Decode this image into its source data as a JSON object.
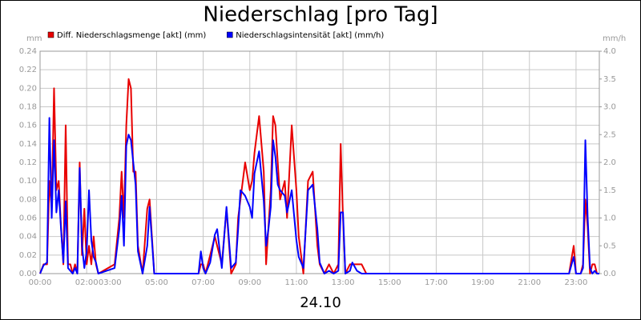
{
  "chart_data": {
    "type": "line",
    "title": "Niederschlag [pro Tag]",
    "xlabel": "24.10",
    "ylabel": "mm",
    "y2label": "mm/h",
    "legend": "top",
    "grid": true,
    "xlim": [
      0,
      24
    ],
    "xticks": [
      {
        "value": 0,
        "label": "00:00"
      },
      {
        "value": 2,
        "label": "02:00"
      },
      {
        "value": 3,
        "label": "03:00"
      },
      {
        "value": 5,
        "label": "05:00"
      },
      {
        "value": 7,
        "label": "07:00"
      },
      {
        "value": 9,
        "label": "09:00"
      },
      {
        "value": 11,
        "label": "11:00"
      },
      {
        "value": 13,
        "label": "13:00"
      },
      {
        "value": 15,
        "label": "15:00"
      },
      {
        "value": 17,
        "label": "17:00"
      },
      {
        "value": 19,
        "label": "19:00"
      },
      {
        "value": 21,
        "label": "21:00"
      },
      {
        "value": 23,
        "label": "23:00"
      }
    ],
    "ylim": [
      0,
      0.24
    ],
    "yticks": [
      {
        "value": 0,
        "label": "0.00"
      },
      {
        "value": 0.02,
        "label": "0.02"
      },
      {
        "value": 0.04,
        "label": "0.04"
      },
      {
        "value": 0.06,
        "label": "0.06"
      },
      {
        "value": 0.08,
        "label": "0.08"
      },
      {
        "value": 0.1,
        "label": "0.10"
      },
      {
        "value": 0.12,
        "label": "0.12"
      },
      {
        "value": 0.14,
        "label": "0.14"
      },
      {
        "value": 0.16,
        "label": "0.16"
      },
      {
        "value": 0.18,
        "label": "0.18"
      },
      {
        "value": 0.2,
        "label": "0.20"
      },
      {
        "value": 0.22,
        "label": "0.22"
      },
      {
        "value": 0.24,
        "label": "0.24"
      }
    ],
    "y2lim": [
      0,
      4
    ],
    "y2ticks": [
      {
        "value": 0,
        "label": "0.0"
      },
      {
        "value": 0.5,
        "label": "0.5"
      },
      {
        "value": 1,
        "label": "1.0"
      },
      {
        "value": 1.5,
        "label": "1.5"
      },
      {
        "value": 2,
        "label": "2.0"
      },
      {
        "value": 2.5,
        "label": "2.5"
      },
      {
        "value": 3,
        "label": "3.0"
      },
      {
        "value": 3.5,
        "label": "3.5"
      },
      {
        "value": 4,
        "label": "4.0"
      }
    ],
    "x": [
      0,
      0.15,
      0.3,
      0.4,
      0.5,
      0.6,
      0.7,
      0.8,
      0.9,
      1.0,
      1.1,
      1.2,
      1.3,
      1.4,
      1.5,
      1.6,
      1.7,
      1.8,
      1.9,
      2.0,
      2.1,
      2.2,
      2.3,
      2.4,
      2.5,
      3.2,
      3.4,
      3.5,
      3.6,
      3.7,
      3.8,
      3.9,
      4.0,
      4.1,
      4.2,
      4.4,
      4.6,
      4.7,
      4.9,
      6.8,
      6.9,
      7.0,
      7.1,
      7.3,
      7.5,
      7.6,
      7.8,
      8.0,
      8.2,
      8.4,
      8.5,
      8.6,
      8.8,
      9.0,
      9.1,
      9.2,
      9.4,
      9.6,
      9.7,
      9.8,
      9.9,
      10.0,
      10.1,
      10.2,
      10.3,
      10.5,
      10.6,
      10.8,
      11.0,
      11.1,
      11.3,
      11.5,
      11.7,
      11.9,
      12.0,
      12.2,
      12.4,
      12.6,
      12.8,
      12.9,
      13.0,
      13.1,
      13.3,
      13.4,
      13.6,
      13.8,
      14.0,
      22.7,
      22.9,
      23.0,
      23.2,
      23.3,
      23.4,
      23.5,
      23.6,
      23.7,
      23.8,
      23.9,
      24
    ],
    "series": [
      {
        "name": "Diff. Niederschlagsmenge [akt] (mm)",
        "color": "#e80000",
        "values": [
          0,
          0.01,
          0.01,
          0.1,
          0.07,
          0.2,
          0.09,
          0.1,
          0.05,
          0.01,
          0.16,
          0.01,
          0.01,
          0,
          0.01,
          0,
          0.12,
          0.02,
          0.07,
          0.01,
          0.03,
          0.01,
          0.04,
          0.01,
          0,
          0.01,
          0.06,
          0.11,
          0.06,
          0.16,
          0.21,
          0.2,
          0.11,
          0.11,
          0.03,
          0,
          0.07,
          0.08,
          0,
          0,
          0.01,
          0.01,
          0,
          0.02,
          0.04,
          0.03,
          0.01,
          0.07,
          0,
          0.01,
          0.06,
          0.08,
          0.12,
          0.09,
          0.1,
          0.13,
          0.17,
          0.11,
          0.01,
          0.05,
          0.09,
          0.17,
          0.16,
          0.12,
          0.08,
          0.1,
          0.06,
          0.16,
          0.09,
          0.04,
          0,
          0.1,
          0.11,
          0.03,
          0.01,
          0,
          0.01,
          0,
          0.01,
          0.14,
          0.06,
          0,
          0.01,
          0.01,
          0.01,
          0.01,
          0,
          0,
          0.03,
          0,
          0,
          0.01,
          0.08,
          0.05,
          0,
          0.01,
          0.01,
          0,
          0
        ]
      },
      {
        "name": "Niederschlagsintensität [akt] (mm/h)",
        "color": "#0000ff",
        "axis": "y2",
        "values": [
          0,
          0.15,
          0.2,
          2.8,
          1.0,
          2.4,
          1.1,
          1.5,
          0.8,
          0.2,
          1.3,
          0.1,
          0.05,
          0,
          0.1,
          0,
          1.9,
          0.5,
          0.1,
          0.4,
          1.5,
          0.6,
          0.3,
          0.2,
          0,
          0.1,
          0.8,
          1.4,
          0.5,
          2.3,
          2.5,
          2.4,
          2.0,
          1.6,
          0.4,
          0,
          0.5,
          1.2,
          0,
          0,
          0.4,
          0.1,
          0,
          0.2,
          0.7,
          0.8,
          0.1,
          1.2,
          0.1,
          0.2,
          0.8,
          1.5,
          1.4,
          1.2,
          1.0,
          1.8,
          2.2,
          1.3,
          0.5,
          0.8,
          1.2,
          2.4,
          2.1,
          1.6,
          1.5,
          1.4,
          1.1,
          1.5,
          0.6,
          0.3,
          0.1,
          1.5,
          1.6,
          0.8,
          0.2,
          0,
          0.05,
          0,
          0.05,
          1.1,
          1.1,
          0,
          0.05,
          0.2,
          0.05,
          0,
          0,
          0,
          0.3,
          0,
          0,
          0.1,
          2.4,
          1.0,
          0.1,
          0,
          0.05,
          0,
          0
        ]
      }
    ]
  }
}
